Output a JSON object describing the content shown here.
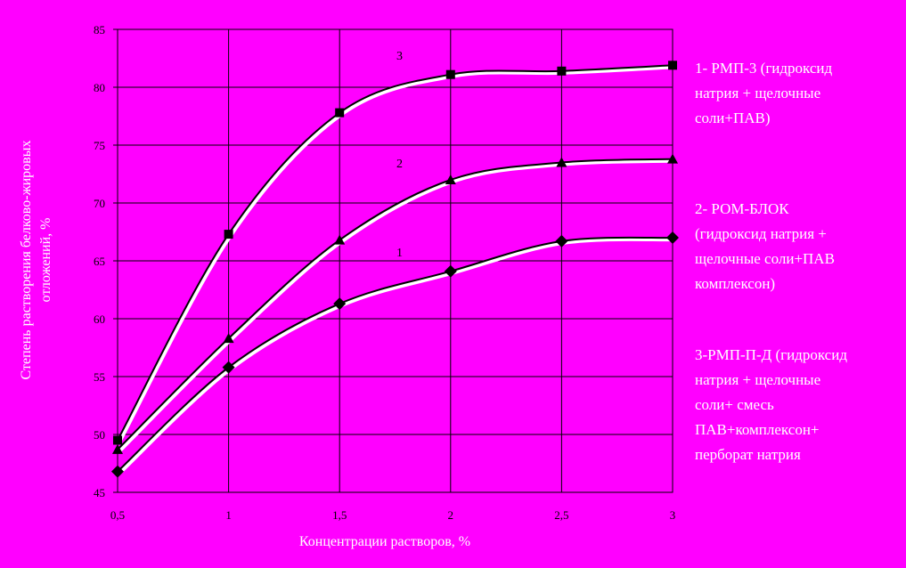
{
  "chart_data": {
    "type": "line",
    "y_label": [
      "Степень растворения белково-жировых",
      "отложений, %"
    ],
    "x_label": "Концентрации растворов, %",
    "x": [
      0.5,
      1,
      1.5,
      2,
      2.5,
      3
    ],
    "xlim": [
      0.5,
      3
    ],
    "xticks": [
      {
        "value": 0.5,
        "label": "0,5"
      },
      1,
      {
        "value": 1.5,
        "label": "1,5"
      },
      2,
      {
        "value": 2.5,
        "label": "2,5"
      },
      3
    ],
    "ylim": [
      45,
      85
    ],
    "yticks": [
      45,
      50,
      55,
      60,
      65,
      70,
      75,
      80,
      85
    ],
    "grid": true,
    "series": [
      {
        "name": "3",
        "color": "#000000",
        "marker": "square",
        "values": [
          49.5,
          67.3,
          77.8,
          81.1,
          81.4,
          81.9
        ]
      },
      {
        "name": "2",
        "color": "#000000",
        "marker": "triangle",
        "values": [
          48.7,
          58.3,
          66.8,
          72.0,
          73.5,
          73.8
        ]
      },
      {
        "name": "1",
        "color": "#000000",
        "marker": "diamond",
        "values": [
          46.8,
          55.8,
          61.3,
          64.1,
          66.7,
          67.0
        ]
      }
    ],
    "legend_notes": [
      [
        "1- РМП-3 (гидроксид",
        "натрия + щелочные",
        "соли+ПАВ)"
      ],
      [
        "2- РОМ-БЛОК",
        "(гидроксид натрия +",
        "щелочные соли+ПАВ",
        "комплексон)"
      ],
      [
        "3-РМП-П-Д (гидроксид",
        "натрия + щелочные",
        "соли+ смесь",
        "ПАВ+комплексон+",
        "перборат натрия"
      ]
    ]
  }
}
